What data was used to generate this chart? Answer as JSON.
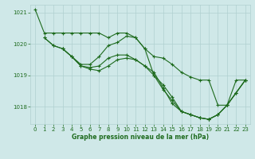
{
  "background_color": "#cfe8e8",
  "grid_color": "#b0d0d0",
  "line_color": "#1e6b1e",
  "xlabel": "Graphe pression niveau de la mer (hPa)",
  "xlim": [
    -0.5,
    23.5
  ],
  "ylim": [
    1017.45,
    1021.25
  ],
  "yticks": [
    1018,
    1019,
    1020,
    1021
  ],
  "xticks": [
    0,
    1,
    2,
    3,
    4,
    5,
    6,
    7,
    8,
    9,
    10,
    11,
    12,
    13,
    14,
    15,
    16,
    17,
    18,
    19,
    20,
    21,
    22,
    23
  ],
  "line1_x": [
    0,
    1,
    2,
    3,
    4,
    5,
    6,
    7,
    8,
    9,
    10,
    11,
    12,
    13,
    14,
    15,
    16,
    17,
    18,
    19,
    20,
    21,
    22,
    23
  ],
  "line1_y": [
    1021.1,
    1020.35,
    1020.35,
    1020.35,
    1020.35,
    1020.35,
    1020.35,
    1020.35,
    1020.2,
    1020.35,
    1020.35,
    1020.2,
    1019.85,
    1019.6,
    1019.55,
    1019.35,
    1019.1,
    1018.95,
    1018.85,
    1018.85,
    1018.05,
    1018.05,
    1018.85,
    1018.85
  ],
  "line2_x": [
    1,
    2,
    3,
    4,
    5,
    6,
    7,
    8,
    9,
    10,
    11,
    12,
    13,
    14,
    15,
    16,
    17,
    18,
    19,
    20,
    21,
    22,
    23
  ],
  "line2_y": [
    1020.2,
    1019.95,
    1019.85,
    1019.6,
    1019.35,
    1019.35,
    1019.6,
    1019.95,
    1020.05,
    1020.25,
    1020.2,
    1019.85,
    1019.0,
    1018.7,
    1018.3,
    1017.85,
    1017.75,
    1017.65,
    1017.6,
    1017.75,
    1018.05,
    1018.45,
    1018.85
  ],
  "line3_x": [
    1,
    2,
    3,
    4,
    5,
    6,
    7,
    8,
    9,
    10,
    11,
    12,
    13,
    14,
    15,
    16,
    17,
    18,
    19,
    20,
    21,
    22,
    23
  ],
  "line3_y": [
    1020.2,
    1019.95,
    1019.85,
    1019.6,
    1019.3,
    1019.25,
    1019.3,
    1019.55,
    1019.65,
    1019.65,
    1019.5,
    1019.3,
    1019.0,
    1018.55,
    1018.2,
    1017.85,
    1017.75,
    1017.65,
    1017.6,
    1017.75,
    1018.05,
    1018.45,
    1018.85
  ],
  "line4_x": [
    3,
    4,
    5,
    6,
    7,
    8,
    9,
    10,
    11,
    12,
    13,
    14,
    15,
    16,
    17,
    18,
    19,
    20,
    21,
    22,
    23
  ],
  "line4_y": [
    1019.85,
    1019.6,
    1019.3,
    1019.2,
    1019.15,
    1019.3,
    1019.5,
    1019.55,
    1019.5,
    1019.3,
    1019.1,
    1018.6,
    1018.1,
    1017.85,
    1017.75,
    1017.65,
    1017.6,
    1017.75,
    1018.05,
    1018.45,
    1018.85
  ]
}
